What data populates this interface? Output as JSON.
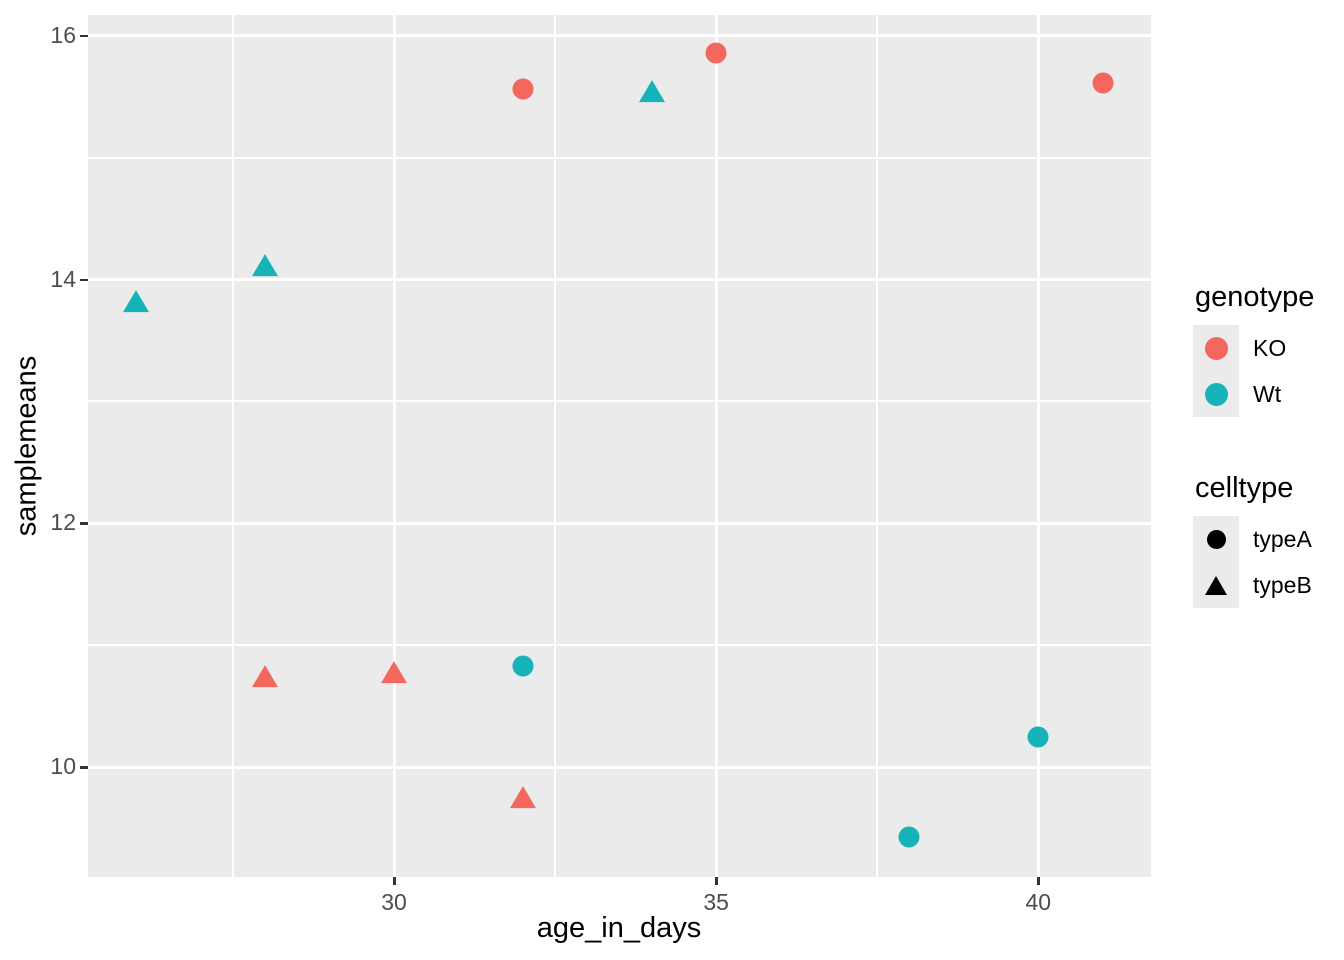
{
  "chart_data": {
    "type": "scatter",
    "title": "",
    "xlabel": "age_in_days",
    "ylabel": "samplemeans",
    "xlim": [
      25.25,
      41.75
    ],
    "ylim": [
      9.1,
      16.17
    ],
    "x_major_ticks": [
      30,
      35,
      40
    ],
    "x_minor_gridlines": [
      27.5,
      32.5,
      37.5
    ],
    "y_major_ticks": [
      10,
      12,
      14,
      16
    ],
    "y_minor_gridlines": [
      11,
      13,
      15
    ],
    "grid": true,
    "panel_bg": "#EBEBEB",
    "grid_color": "#FFFFFF",
    "axis_text_color": "#4D4D4D",
    "series": [
      {
        "name": "KO typeA",
        "genotype": "KO",
        "celltype": "typeA",
        "marker": "circle",
        "color": "#F4675E",
        "points": [
          {
            "x": 32,
            "y": 15.56
          },
          {
            "x": 35,
            "y": 15.86
          },
          {
            "x": 41,
            "y": 15.61
          }
        ]
      },
      {
        "name": "Wt typeA",
        "genotype": "Wt",
        "celltype": "typeA",
        "marker": "circle",
        "color": "#16B4B8",
        "points": [
          {
            "x": 32,
            "y": 10.83
          },
          {
            "x": 38,
            "y": 9.43
          },
          {
            "x": 40,
            "y": 10.25
          }
        ]
      },
      {
        "name": "KO typeB",
        "genotype": "KO",
        "celltype": "typeB",
        "marker": "triangle",
        "color": "#F4675E",
        "points": [
          {
            "x": 28,
            "y": 10.74
          },
          {
            "x": 30,
            "y": 10.77
          },
          {
            "x": 32,
            "y": 9.75
          }
        ]
      },
      {
        "name": "Wt typeB",
        "genotype": "Wt",
        "celltype": "typeB",
        "marker": "triangle",
        "color": "#16B4B8",
        "points": [
          {
            "x": 26,
            "y": 13.82
          },
          {
            "x": 28,
            "y": 14.11
          },
          {
            "x": 34,
            "y": 15.54
          }
        ]
      }
    ],
    "legends": [
      {
        "title": "genotype",
        "position": "right",
        "entries": [
          {
            "label": "KO",
            "marker": "circle",
            "color": "#F4675E"
          },
          {
            "label": "Wt",
            "marker": "circle",
            "color": "#16B4B8"
          }
        ]
      },
      {
        "title": "celltype",
        "position": "right",
        "entries": [
          {
            "label": "typeA",
            "marker": "circle",
            "color": "#000000"
          },
          {
            "label": "typeB",
            "marker": "triangle",
            "color": "#000000"
          }
        ]
      }
    ]
  }
}
